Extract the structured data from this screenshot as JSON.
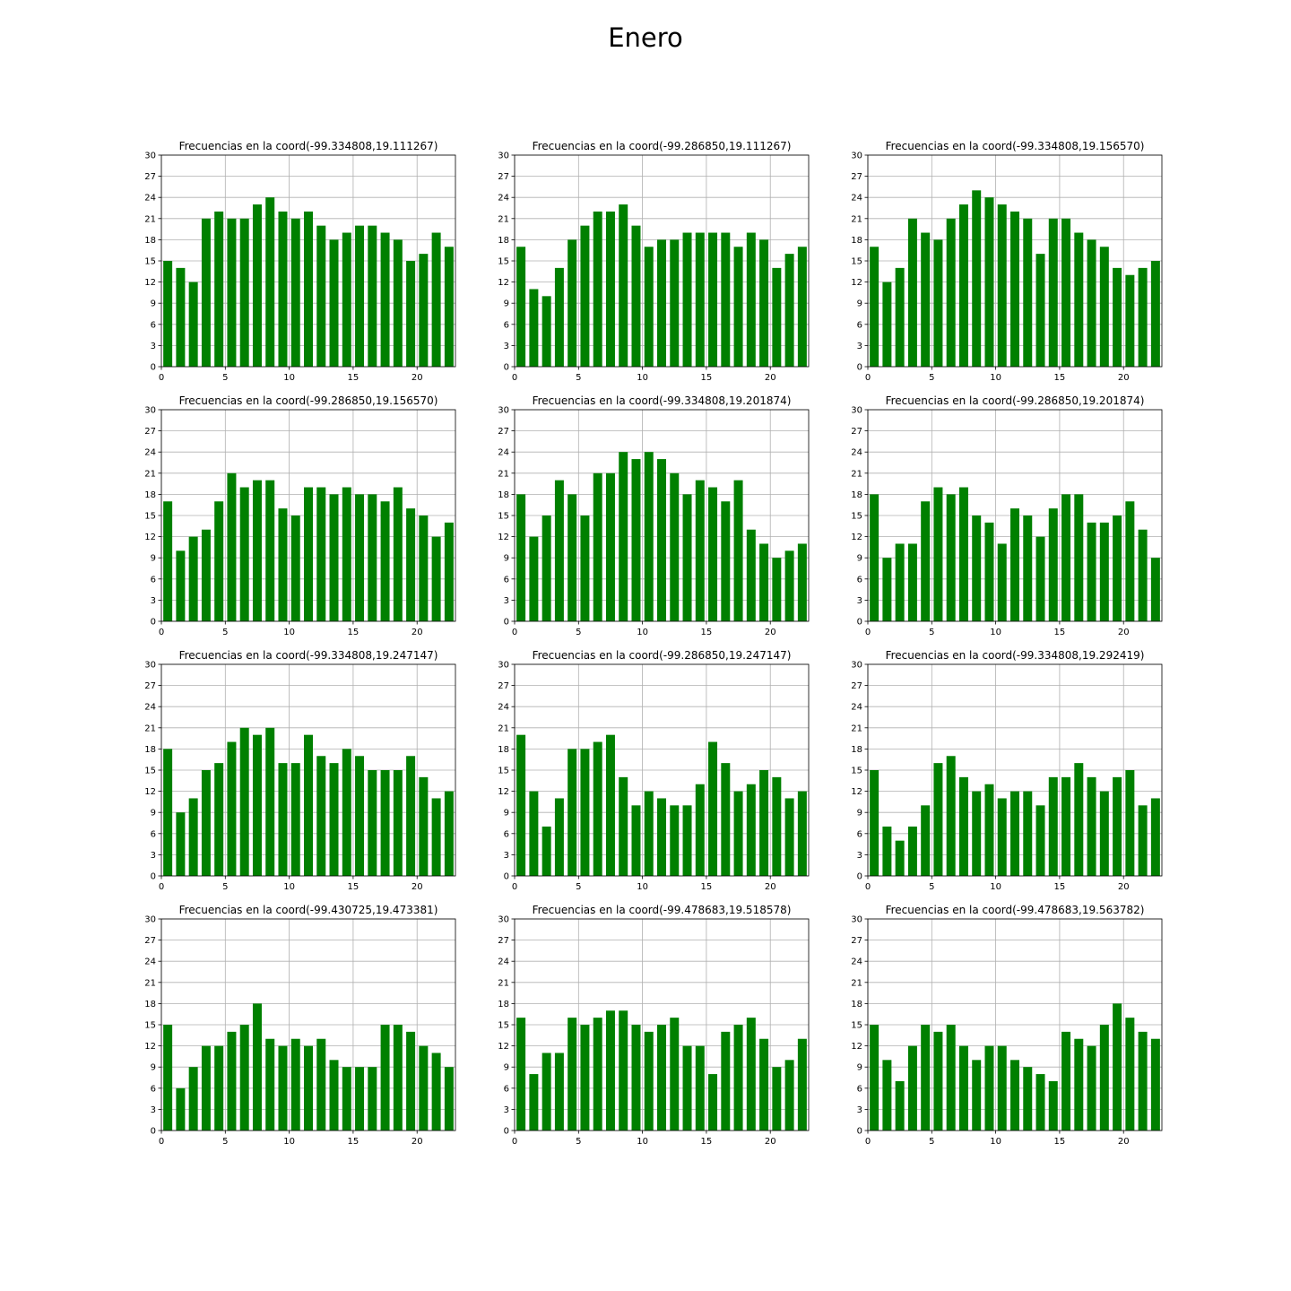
{
  "suptitle": "Enero",
  "chart_data": [
    {
      "type": "bar",
      "title": "Frecuencias en la coord(-99.334808,19.111267)",
      "x": [
        0,
        1,
        2,
        3,
        4,
        5,
        6,
        7,
        8,
        9,
        10,
        11,
        12,
        13,
        14,
        15,
        16,
        17,
        18,
        19,
        20,
        21,
        22
      ],
      "values": [
        15,
        14,
        12,
        21,
        22,
        21,
        21,
        23,
        24,
        22,
        21,
        22,
        20,
        18,
        19,
        20,
        20,
        19,
        18,
        15,
        16,
        19,
        17
      ],
      "xlim": [
        0,
        23
      ],
      "ylim": [
        0,
        30
      ],
      "xticks": [
        0,
        5,
        10,
        15,
        20
      ],
      "yticks": [
        0,
        3,
        6,
        9,
        12,
        15,
        18,
        21,
        24,
        27,
        30
      ],
      "grid": true,
      "color": "#008000"
    },
    {
      "type": "bar",
      "title": "Frecuencias en la coord(-99.286850,19.111267)",
      "x": [
        0,
        1,
        2,
        3,
        4,
        5,
        6,
        7,
        8,
        9,
        10,
        11,
        12,
        13,
        14,
        15,
        16,
        17,
        18,
        19,
        20,
        21,
        22
      ],
      "values": [
        17,
        11,
        10,
        14,
        18,
        20,
        22,
        22,
        23,
        20,
        17,
        18,
        18,
        19,
        19,
        19,
        19,
        17,
        19,
        18,
        14,
        16,
        17
      ],
      "xlim": [
        0,
        23
      ],
      "ylim": [
        0,
        30
      ],
      "xticks": [
        0,
        5,
        10,
        15,
        20
      ],
      "yticks": [
        0,
        3,
        6,
        9,
        12,
        15,
        18,
        21,
        24,
        27,
        30
      ],
      "grid": true,
      "color": "#008000"
    },
    {
      "type": "bar",
      "title": "Frecuencias en la coord(-99.334808,19.156570)",
      "x": [
        0,
        1,
        2,
        3,
        4,
        5,
        6,
        7,
        8,
        9,
        10,
        11,
        12,
        13,
        14,
        15,
        16,
        17,
        18,
        19,
        20,
        21,
        22
      ],
      "values": [
        17,
        12,
        14,
        21,
        19,
        18,
        21,
        23,
        25,
        24,
        23,
        22,
        21,
        16,
        21,
        21,
        19,
        18,
        17,
        14,
        13,
        14,
        15
      ],
      "xlim": [
        0,
        23
      ],
      "ylim": [
        0,
        30
      ],
      "xticks": [
        0,
        5,
        10,
        15,
        20
      ],
      "yticks": [
        0,
        3,
        6,
        9,
        12,
        15,
        18,
        21,
        24,
        27,
        30
      ],
      "grid": true,
      "color": "#008000"
    },
    {
      "type": "bar",
      "title": "Frecuencias en la coord(-99.286850,19.156570)",
      "x": [
        0,
        1,
        2,
        3,
        4,
        5,
        6,
        7,
        8,
        9,
        10,
        11,
        12,
        13,
        14,
        15,
        16,
        17,
        18,
        19,
        20,
        21,
        22
      ],
      "values": [
        17,
        10,
        12,
        13,
        17,
        21,
        19,
        20,
        20,
        16,
        15,
        19,
        19,
        18,
        19,
        18,
        18,
        17,
        19,
        16,
        15,
        12,
        14
      ],
      "xlim": [
        0,
        23
      ],
      "ylim": [
        0,
        30
      ],
      "xticks": [
        0,
        5,
        10,
        15,
        20
      ],
      "yticks": [
        0,
        3,
        6,
        9,
        12,
        15,
        18,
        21,
        24,
        27,
        30
      ],
      "grid": true,
      "color": "#008000"
    },
    {
      "type": "bar",
      "title": "Frecuencias en la coord(-99.334808,19.201874)",
      "x": [
        0,
        1,
        2,
        3,
        4,
        5,
        6,
        7,
        8,
        9,
        10,
        11,
        12,
        13,
        14,
        15,
        16,
        17,
        18,
        19,
        20,
        21,
        22
      ],
      "values": [
        18,
        12,
        15,
        20,
        18,
        15,
        21,
        21,
        24,
        23,
        24,
        23,
        21,
        18,
        20,
        19,
        17,
        20,
        13,
        11,
        9,
        10,
        11
      ],
      "xlim": [
        0,
        23
      ],
      "ylim": [
        0,
        30
      ],
      "xticks": [
        0,
        5,
        10,
        15,
        20
      ],
      "yticks": [
        0,
        3,
        6,
        9,
        12,
        15,
        18,
        21,
        24,
        27,
        30
      ],
      "grid": true,
      "color": "#008000"
    },
    {
      "type": "bar",
      "title": "Frecuencias en la coord(-99.286850,19.201874)",
      "x": [
        0,
        1,
        2,
        3,
        4,
        5,
        6,
        7,
        8,
        9,
        10,
        11,
        12,
        13,
        14,
        15,
        16,
        17,
        18,
        19,
        20,
        21,
        22
      ],
      "values": [
        18,
        9,
        11,
        11,
        17,
        19,
        18,
        19,
        15,
        14,
        11,
        16,
        15,
        12,
        16,
        18,
        18,
        14,
        14,
        15,
        17,
        13,
        9
      ],
      "xlim": [
        0,
        23
      ],
      "ylim": [
        0,
        30
      ],
      "xticks": [
        0,
        5,
        10,
        15,
        20
      ],
      "yticks": [
        0,
        3,
        6,
        9,
        12,
        15,
        18,
        21,
        24,
        27,
        30
      ],
      "grid": true,
      "color": "#008000"
    },
    {
      "type": "bar",
      "title": "Frecuencias en la coord(-99.334808,19.247147)",
      "x": [
        0,
        1,
        2,
        3,
        4,
        5,
        6,
        7,
        8,
        9,
        10,
        11,
        12,
        13,
        14,
        15,
        16,
        17,
        18,
        19,
        20,
        21,
        22
      ],
      "values": [
        18,
        9,
        11,
        15,
        16,
        19,
        21,
        20,
        21,
        16,
        16,
        20,
        17,
        16,
        18,
        17,
        15,
        15,
        15,
        17,
        14,
        11,
        12
      ],
      "xlim": [
        0,
        23
      ],
      "ylim": [
        0,
        30
      ],
      "xticks": [
        0,
        5,
        10,
        15,
        20
      ],
      "yticks": [
        0,
        3,
        6,
        9,
        12,
        15,
        18,
        21,
        24,
        27,
        30
      ],
      "grid": true,
      "color": "#008000"
    },
    {
      "type": "bar",
      "title": "Frecuencias en la coord(-99.286850,19.247147)",
      "x": [
        0,
        1,
        2,
        3,
        4,
        5,
        6,
        7,
        8,
        9,
        10,
        11,
        12,
        13,
        14,
        15,
        16,
        17,
        18,
        19,
        20,
        21,
        22
      ],
      "values": [
        20,
        12,
        7,
        11,
        18,
        18,
        19,
        20,
        14,
        10,
        12,
        11,
        10,
        10,
        13,
        19,
        16,
        12,
        13,
        15,
        14,
        11,
        12
      ],
      "xlim": [
        0,
        23
      ],
      "ylim": [
        0,
        30
      ],
      "xticks": [
        0,
        5,
        10,
        15,
        20
      ],
      "yticks": [
        0,
        3,
        6,
        9,
        12,
        15,
        18,
        21,
        24,
        27,
        30
      ],
      "grid": true,
      "color": "#008000"
    },
    {
      "type": "bar",
      "title": "Frecuencias en la coord(-99.334808,19.292419)",
      "x": [
        0,
        1,
        2,
        3,
        4,
        5,
        6,
        7,
        8,
        9,
        10,
        11,
        12,
        13,
        14,
        15,
        16,
        17,
        18,
        19,
        20,
        21,
        22
      ],
      "values": [
        15,
        7,
        5,
        7,
        10,
        16,
        17,
        14,
        12,
        13,
        11,
        12,
        12,
        10,
        14,
        14,
        16,
        14,
        12,
        14,
        15,
        10,
        11
      ],
      "xlim": [
        0,
        23
      ],
      "ylim": [
        0,
        30
      ],
      "xticks": [
        0,
        5,
        10,
        15,
        20
      ],
      "yticks": [
        0,
        3,
        6,
        9,
        12,
        15,
        18,
        21,
        24,
        27,
        30
      ],
      "grid": true,
      "color": "#008000"
    },
    {
      "type": "bar",
      "title": "Frecuencias en la coord(-99.430725,19.473381)",
      "x": [
        0,
        1,
        2,
        3,
        4,
        5,
        6,
        7,
        8,
        9,
        10,
        11,
        12,
        13,
        14,
        15,
        16,
        17,
        18,
        19,
        20,
        21,
        22
      ],
      "values": [
        15,
        6,
        9,
        12,
        12,
        14,
        15,
        18,
        13,
        12,
        13,
        12,
        13,
        10,
        9,
        9,
        9,
        15,
        15,
        14,
        12,
        11,
        9
      ],
      "xlim": [
        0,
        23
      ],
      "ylim": [
        0,
        30
      ],
      "xticks": [
        0,
        5,
        10,
        15,
        20
      ],
      "yticks": [
        0,
        3,
        6,
        9,
        12,
        15,
        18,
        21,
        24,
        27,
        30
      ],
      "grid": true,
      "color": "#008000"
    },
    {
      "type": "bar",
      "title": "Frecuencias en la coord(-99.478683,19.518578)",
      "x": [
        0,
        1,
        2,
        3,
        4,
        5,
        6,
        7,
        8,
        9,
        10,
        11,
        12,
        13,
        14,
        15,
        16,
        17,
        18,
        19,
        20,
        21,
        22
      ],
      "values": [
        16,
        8,
        11,
        11,
        16,
        15,
        16,
        17,
        17,
        15,
        14,
        15,
        16,
        12,
        12,
        8,
        14,
        15,
        16,
        13,
        9,
        10,
        13
      ],
      "xlim": [
        0,
        23
      ],
      "ylim": [
        0,
        30
      ],
      "xticks": [
        0,
        5,
        10,
        15,
        20
      ],
      "yticks": [
        0,
        3,
        6,
        9,
        12,
        15,
        18,
        21,
        24,
        27,
        30
      ],
      "grid": true,
      "color": "#008000"
    },
    {
      "type": "bar",
      "title": "Frecuencias en la coord(-99.478683,19.563782)",
      "x": [
        0,
        1,
        2,
        3,
        4,
        5,
        6,
        7,
        8,
        9,
        10,
        11,
        12,
        13,
        14,
        15,
        16,
        17,
        18,
        19,
        20,
        21,
        22
      ],
      "values": [
        15,
        10,
        7,
        12,
        15,
        14,
        15,
        12,
        10,
        12,
        12,
        10,
        9,
        8,
        7,
        14,
        13,
        12,
        15,
        18,
        16,
        14,
        13
      ],
      "xlim": [
        0,
        23
      ],
      "ylim": [
        0,
        30
      ],
      "xticks": [
        0,
        5,
        10,
        15,
        20
      ],
      "yticks": [
        0,
        3,
        6,
        9,
        12,
        15,
        18,
        21,
        24,
        27,
        30
      ],
      "grid": true,
      "color": "#008000"
    }
  ]
}
